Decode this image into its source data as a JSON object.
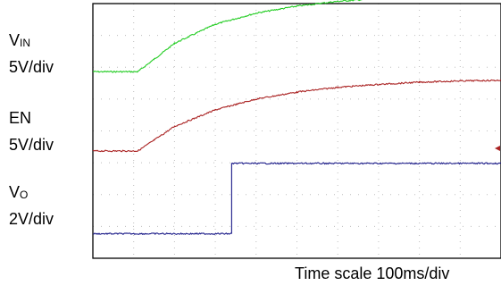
{
  "chart_data": {
    "type": "line",
    "x_divisions": 10,
    "y_divisions": 8,
    "grid": true,
    "x_scale_caption": "Time scale 100ms/div",
    "series": [
      {
        "key": "vin",
        "label_main": "V",
        "label_sub": "IN",
        "scale_label": "5V/div",
        "color": "#22cc22",
        "points": [
          [
            0,
            5.86
          ],
          [
            1.1,
            5.86
          ],
          [
            1.5,
            6.25
          ],
          [
            2,
            6.75
          ],
          [
            3,
            7.35
          ],
          [
            4,
            7.7
          ],
          [
            5,
            7.92
          ],
          [
            6,
            8.07
          ],
          [
            7,
            8.16
          ],
          [
            8,
            8.23
          ],
          [
            9,
            8.27
          ],
          [
            10,
            8.29
          ]
        ]
      },
      {
        "key": "en",
        "label_main": "EN",
        "label_sub": "",
        "scale_label": "5V/div",
        "color": "#aa2222",
        "points": [
          [
            0,
            3.37
          ],
          [
            1.1,
            3.37
          ],
          [
            1.5,
            3.71
          ],
          [
            2,
            4.14
          ],
          [
            3,
            4.66
          ],
          [
            4,
            5.0
          ],
          [
            5,
            5.22
          ],
          [
            6,
            5.37
          ],
          [
            7,
            5.46
          ],
          [
            8,
            5.53
          ],
          [
            9,
            5.57
          ],
          [
            10,
            5.59
          ]
        ]
      },
      {
        "key": "vo",
        "label_main": "V",
        "label_sub": "O",
        "scale_label": "2V/div",
        "color": "#1a1a88",
        "points": [
          [
            0,
            0.77
          ],
          [
            3.4,
            0.77
          ],
          [
            3.4,
            2.98
          ],
          [
            10,
            2.98
          ]
        ]
      }
    ]
  }
}
